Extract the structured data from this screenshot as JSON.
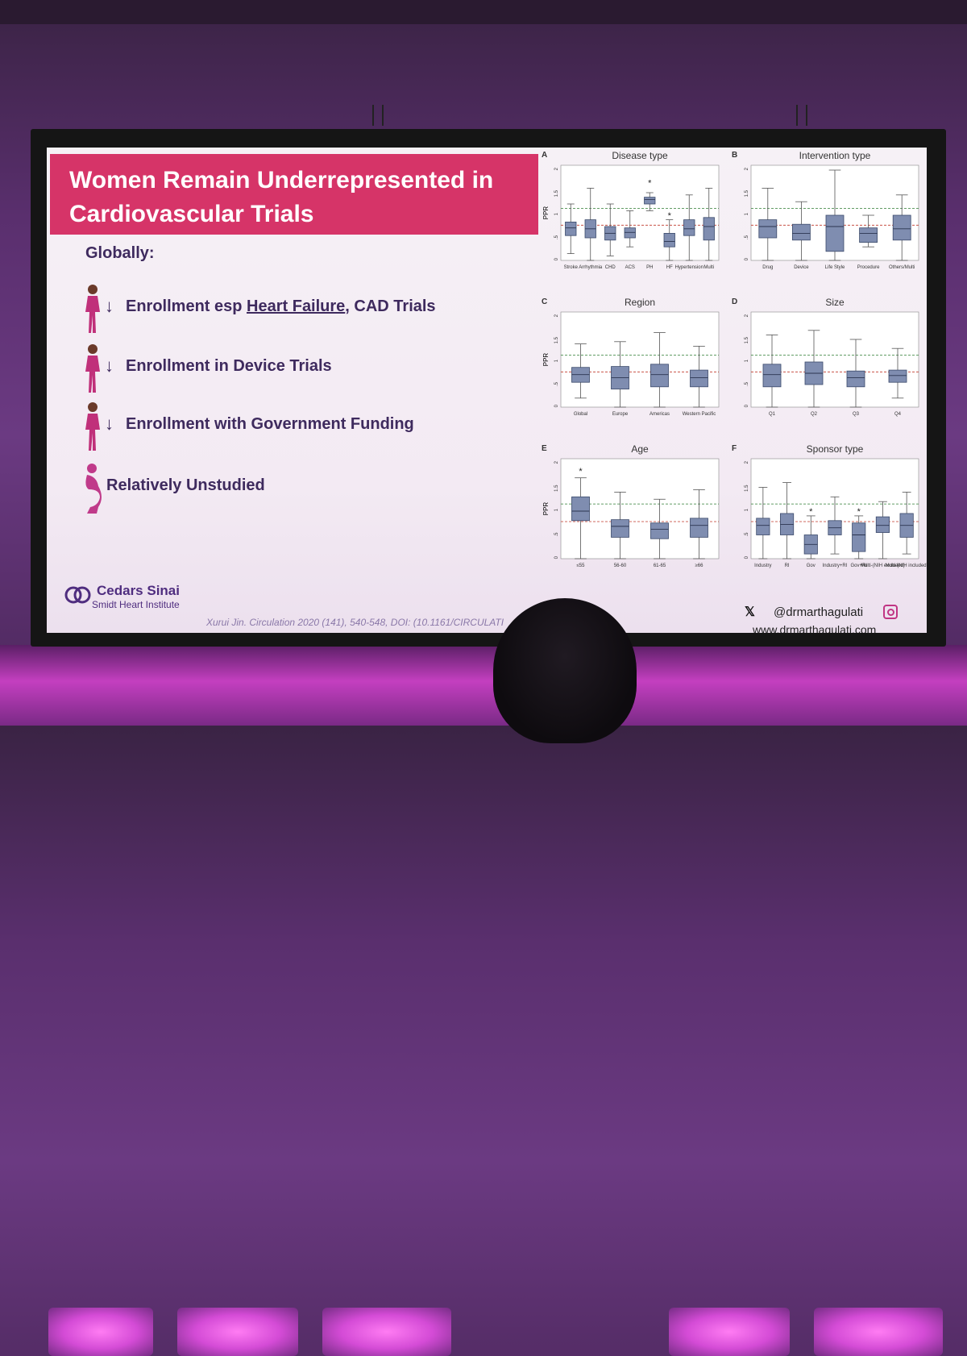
{
  "slide": {
    "title": "Women Remain Underrepresented in Cardiovascular Trials",
    "subtitle": "Globally:",
    "bullets": [
      {
        "arrow": "↓",
        "pre": "Enrollment esp ",
        "underlined": "Heart Failure",
        "post": ", CAD Trials",
        "icon": "woman-figure-icon"
      },
      {
        "arrow": "↓",
        "pre": "Enrollment in Device Trials",
        "underlined": "",
        "post": "",
        "icon": "woman-figure-icon"
      },
      {
        "arrow": "↓",
        "pre": "Enrollment with Government Funding",
        "underlined": "",
        "post": "",
        "icon": "woman-figure-icon"
      },
      {
        "arrow": "",
        "pre": "Relatively Unstudied",
        "underlined": "",
        "post": "",
        "icon": "pregnant-woman-icon"
      }
    ],
    "logo": {
      "name": "Cedars Sinai",
      "subname": "Smidt Heart Institute"
    },
    "citation": "Xurui Jin. Circulation 2020 (141), 540-548, DOI: (10.1161/CIRCULATI",
    "social_handle": "@drmarthagulati",
    "website": "www.drmarthagulati.com",
    "colors": {
      "title_bg": "#d63468",
      "text": "#3e2a5e",
      "box": "#7f8db0",
      "ref_red": "#c0392b",
      "ref_green": "#2e7d32"
    }
  },
  "chart_data": [
    {
      "type": "box",
      "panel": "A",
      "title": "Disease type",
      "ylabel": "PPR",
      "ylim": [
        0,
        2
      ],
      "yticks": [
        "0",
        ".5",
        "1",
        "1.5",
        "2"
      ],
      "categories": [
        "Stroke",
        "Arrhythmia",
        "CHD",
        "ACS",
        "PH",
        "HF",
        "Hypertension",
        "Multi"
      ],
      "boxes": [
        {
          "min": 0.15,
          "q1": 0.55,
          "median": 0.72,
          "q3": 0.85,
          "max": 1.25
        },
        {
          "min": 0.0,
          "q1": 0.5,
          "median": 0.7,
          "q3": 0.9,
          "max": 1.6
        },
        {
          "min": 0.1,
          "q1": 0.45,
          "median": 0.6,
          "q3": 0.75,
          "max": 1.25
        },
        {
          "min": 0.3,
          "q1": 0.5,
          "median": 0.62,
          "q3": 0.72,
          "max": 1.1
        },
        {
          "min": 1.1,
          "q1": 1.25,
          "median": 1.35,
          "q3": 1.4,
          "max": 1.5,
          "outlier": 1.72
        },
        {
          "min": 0.0,
          "q1": 0.3,
          "median": 0.42,
          "q3": 0.6,
          "max": 0.9,
          "outlier": 1.0
        },
        {
          "min": 0.0,
          "q1": 0.55,
          "median": 0.7,
          "q3": 0.9,
          "max": 1.45
        },
        {
          "min": 0.0,
          "q1": 0.45,
          "median": 0.75,
          "q3": 0.95,
          "max": 1.6
        }
      ],
      "ref_lines": [
        0.78,
        1.15
      ]
    },
    {
      "type": "box",
      "panel": "B",
      "title": "Intervention type",
      "ylabel": "",
      "ylim": [
        0,
        2
      ],
      "yticks": [
        "0",
        ".5",
        "1",
        "1.5",
        "2"
      ],
      "categories": [
        "Drug",
        "Device",
        "Life Style",
        "Procedure",
        "Others/Multi"
      ],
      "boxes": [
        {
          "min": 0.0,
          "q1": 0.5,
          "median": 0.75,
          "q3": 0.9,
          "max": 1.6
        },
        {
          "min": 0.0,
          "q1": 0.45,
          "median": 0.6,
          "q3": 0.8,
          "max": 1.3
        },
        {
          "min": 0.0,
          "q1": 0.2,
          "median": 0.75,
          "q3": 1.0,
          "max": 2.0
        },
        {
          "min": 0.3,
          "q1": 0.4,
          "median": 0.6,
          "q3": 0.72,
          "max": 1.0
        },
        {
          "min": 0.0,
          "q1": 0.45,
          "median": 0.7,
          "q3": 1.0,
          "max": 1.45
        }
      ],
      "ref_lines": [
        0.78,
        1.15
      ]
    },
    {
      "type": "box",
      "panel": "C",
      "title": "Region",
      "ylabel": "PPR",
      "ylim": [
        0,
        2
      ],
      "yticks": [
        "0",
        ".5",
        "1",
        "1.5",
        "2"
      ],
      "categories": [
        "Global",
        "Europe",
        "Americas",
        "Western Pacific"
      ],
      "boxes": [
        {
          "min": 0.2,
          "q1": 0.55,
          "median": 0.72,
          "q3": 0.88,
          "max": 1.4
        },
        {
          "min": 0.0,
          "q1": 0.4,
          "median": 0.65,
          "q3": 0.9,
          "max": 1.45
        },
        {
          "min": 0.0,
          "q1": 0.45,
          "median": 0.72,
          "q3": 0.95,
          "max": 1.65
        },
        {
          "min": 0.0,
          "q1": 0.45,
          "median": 0.65,
          "q3": 0.82,
          "max": 1.35
        }
      ],
      "ref_lines": [
        0.78,
        1.15
      ]
    },
    {
      "type": "box",
      "panel": "D",
      "title": "Size",
      "ylabel": "",
      "ylim": [
        0,
        2
      ],
      "yticks": [
        "0",
        ".5",
        "1",
        "1.5",
        "2"
      ],
      "categories": [
        "Q1",
        "Q2",
        "Q3",
        "Q4"
      ],
      "boxes": [
        {
          "min": 0.0,
          "q1": 0.45,
          "median": 0.72,
          "q3": 0.95,
          "max": 1.6
        },
        {
          "min": 0.0,
          "q1": 0.5,
          "median": 0.75,
          "q3": 1.0,
          "max": 1.7
        },
        {
          "min": 0.0,
          "q1": 0.45,
          "median": 0.65,
          "q3": 0.8,
          "max": 1.5
        },
        {
          "min": 0.2,
          "q1": 0.55,
          "median": 0.7,
          "q3": 0.82,
          "max": 1.3
        }
      ],
      "ref_lines": [
        0.78,
        1.15
      ]
    },
    {
      "type": "box",
      "panel": "E",
      "title": "Age",
      "ylabel": "PPR",
      "ylim": [
        0,
        2
      ],
      "yticks": [
        "0",
        ".5",
        "1",
        "1.5",
        "2"
      ],
      "categories": [
        "≤55",
        "56-60",
        "61-65",
        "≥66"
      ],
      "boxes": [
        {
          "min": 0.0,
          "q1": 0.8,
          "median": 1.0,
          "q3": 1.3,
          "max": 1.7,
          "outlier": 1.85
        },
        {
          "min": 0.0,
          "q1": 0.45,
          "median": 0.68,
          "q3": 0.82,
          "max": 1.4
        },
        {
          "min": 0.0,
          "q1": 0.42,
          "median": 0.62,
          "q3": 0.75,
          "max": 1.25
        },
        {
          "min": 0.0,
          "q1": 0.45,
          "median": 0.7,
          "q3": 0.85,
          "max": 1.45
        }
      ],
      "ref_lines": [
        0.78,
        1.15
      ]
    },
    {
      "type": "box",
      "panel": "F",
      "title": "Sponsor type",
      "ylabel": "",
      "ylim": [
        0,
        2
      ],
      "yticks": [
        "0",
        ".5",
        "1",
        "1.5",
        "2"
      ],
      "categories": [
        "Industry",
        "RI",
        "Gov",
        "Industry+RI",
        "Gov+RI",
        "Multi-(NIH excluded)",
        "Multi-(NIH included)"
      ],
      "boxes": [
        {
          "min": 0.0,
          "q1": 0.5,
          "median": 0.7,
          "q3": 0.85,
          "max": 1.5
        },
        {
          "min": 0.0,
          "q1": 0.5,
          "median": 0.72,
          "q3": 0.95,
          "max": 1.6
        },
        {
          "min": 0.0,
          "q1": 0.1,
          "median": 0.3,
          "q3": 0.5,
          "max": 0.9,
          "outlier": 1.0
        },
        {
          "min": 0.1,
          "q1": 0.5,
          "median": 0.65,
          "q3": 0.8,
          "max": 1.3
        },
        {
          "min": 0.0,
          "q1": 0.15,
          "median": 0.5,
          "q3": 0.75,
          "max": 0.9,
          "outlier": 1.0
        },
        {
          "min": 0.0,
          "q1": 0.55,
          "median": 0.7,
          "q3": 0.88,
          "max": 1.2
        },
        {
          "min": 0.1,
          "q1": 0.45,
          "median": 0.7,
          "q3": 0.95,
          "max": 1.4
        }
      ],
      "ref_lines": [
        0.78,
        1.15
      ]
    }
  ]
}
